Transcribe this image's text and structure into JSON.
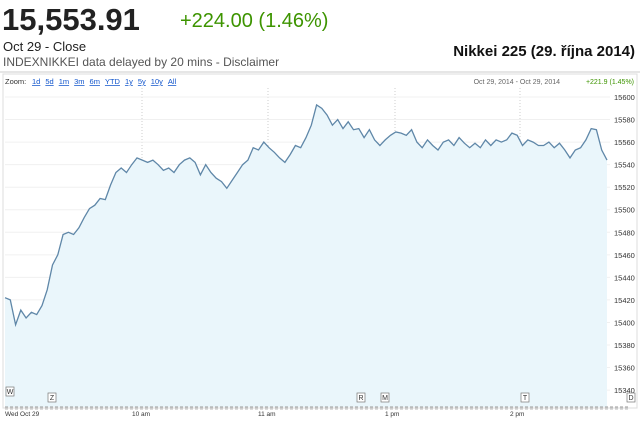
{
  "header": {
    "price": "15,553.91",
    "change": "+224.00 (1.46%)",
    "date_line": "Oct 29 - Close",
    "delay_line": "INDEXNIKKEI data delayed by 20 mins - Disclaimer",
    "chart_title": "Nikkei 225 (29. října 2014)"
  },
  "toolbar": {
    "zoom_label": "Zoom:",
    "zoom_options": [
      "1d",
      "5d",
      "1m",
      "3m",
      "6m",
      "YTD",
      "1y",
      "5y",
      "10y",
      "All"
    ],
    "range_text": "Oct 29, 2014 - Oct 29, 2014",
    "range_change": "+221.9 (1.45%)"
  },
  "chart_data": {
    "type": "area",
    "color": "#5f87a8",
    "fill": "#eaf6fb",
    "values": [
      15422,
      15420,
      15398,
      15411,
      15404,
      15409,
      15407,
      15415,
      15429,
      15451,
      15460,
      15478,
      15480,
      15478,
      15484,
      15493,
      15501,
      15504,
      15510,
      15509,
      15522,
      15533,
      15537,
      15533,
      15540,
      15546,
      15544,
      15542,
      15544,
      15540,
      15535,
      15537,
      15533,
      15540,
      15544,
      15546,
      15542,
      15531,
      15540,
      15533,
      15528,
      15525,
      15519,
      15526,
      15533,
      15540,
      15544,
      15555,
      15553,
      15560,
      15555,
      15551,
      15546,
      15542,
      15549,
      15557,
      15555,
      15564,
      15575,
      15593,
      15590,
      15584,
      15575,
      15580,
      15572,
      15578,
      15571,
      15572,
      15564,
      15571,
      15562,
      15557,
      15562,
      15566,
      15569,
      15568,
      15566,
      15571,
      15560,
      15555,
      15562,
      15557,
      15553,
      15560,
      15562,
      15557,
      15564,
      15559,
      15555,
      15559,
      15555,
      15562,
      15557,
      15562,
      15560,
      15562,
      15568,
      15566,
      15557,
      15562,
      15560,
      15557,
      15557,
      15560,
      15555,
      15559,
      15553,
      15546,
      15553,
      15555,
      15562,
      15572,
      15571,
      15553,
      15544
    ],
    "ylim": [
      15325,
      15608
    ],
    "yticks": [
      15340,
      15360,
      15380,
      15400,
      15420,
      15440,
      15460,
      15480,
      15500,
      15520,
      15540,
      15560,
      15580,
      15600
    ],
    "x_tick_labels": [
      "Wed Oct 29",
      "10 am",
      "11 am",
      "1 pm",
      "2 pm"
    ],
    "markers": [
      "W",
      "Z",
      "R",
      "M",
      "T",
      "D"
    ]
  }
}
